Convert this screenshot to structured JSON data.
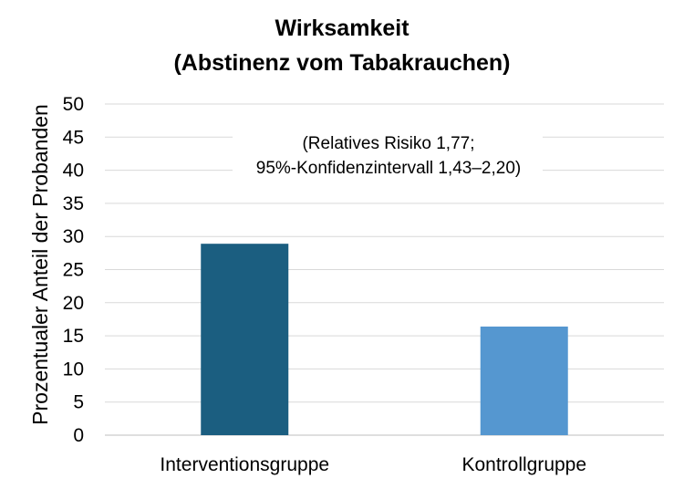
{
  "chart_data": {
    "type": "bar",
    "title_line1": "Wirksamkeit",
    "title_line2": "(Abstinenz vom Tabakrauchen)",
    "xlabel": "",
    "ylabel": "Prozentualer Anteil der Probanden",
    "categories": [
      "Interventionsgruppe",
      "Kontrollgruppe"
    ],
    "values": [
      28.9,
      16.4
    ],
    "bar_colors": [
      "#1b5e80",
      "#5597d0"
    ],
    "ylim": [
      0,
      50
    ],
    "yticks": [
      0,
      5,
      10,
      15,
      20,
      25,
      30,
      35,
      40,
      45,
      50
    ],
    "grid": true,
    "annotation_line1": "(Relatives Risiko 1,77;",
    "annotation_line2": "95%-Konfidenzintervall 1,43–2,20)"
  }
}
